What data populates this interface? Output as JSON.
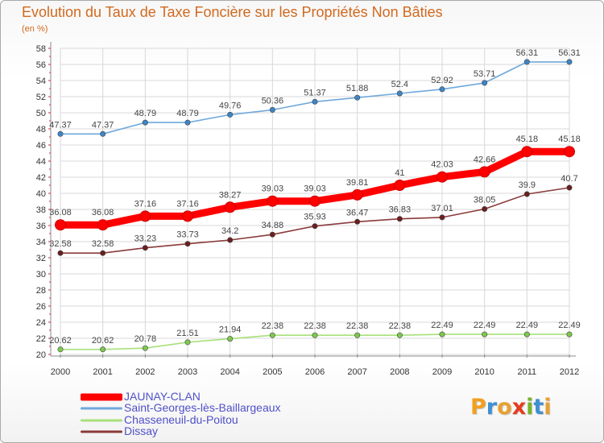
{
  "title": "Evolution du Taux de Taxe Foncière sur les Propriétés Non Bâties",
  "subtitle": "(en %)",
  "logo": {
    "text": "Proxiti",
    "letter_colors": [
      "#f0a020",
      "#3f8fd2",
      "#e8a030",
      "#e63c1e",
      "#78b428",
      "#3f8fd2",
      "#e8a030"
    ]
  },
  "chart_data": {
    "type": "line",
    "title": "Evolution du Taux de Taxe Foncière sur les Propriétés Non Bâties",
    "ylabel": "(en %)",
    "xlabel": "",
    "ylim": [
      20,
      58
    ],
    "yticks": [
      "20",
      "22",
      "24",
      "26",
      "28",
      "30",
      "32",
      "34",
      "36",
      "38",
      "40",
      "42",
      "44",
      "46",
      "48",
      "50",
      "52",
      "54",
      "56",
      "58"
    ],
    "x": [
      "2000",
      "2001",
      "2002",
      "2003",
      "2004",
      "2005",
      "2006",
      "2007",
      "2008",
      "2009",
      "2010",
      "2011",
      "2012"
    ],
    "grid": true,
    "legend_position": "bottom-left",
    "series": [
      {
        "name": "JAUNAY-CLAN",
        "color": "#ff0000",
        "point_color": "#ff0000",
        "width": "thick",
        "values": [
          36.08,
          36.08,
          37.16,
          37.16,
          38.27,
          39.03,
          39.03,
          39.81,
          41,
          42.03,
          42.66,
          45.18,
          45.18
        ],
        "labels": [
          "36.08",
          "36.08",
          "37.16",
          "37.16",
          "38.27",
          "39.03",
          "39.03",
          "39.81",
          "41",
          "42.03",
          "42.66",
          "45.18",
          "45.18"
        ]
      },
      {
        "name": "Saint-Georges-lès-Baillargeaux",
        "color": "#6fa8dc",
        "point_color": "#3d85c6",
        "width": "thin",
        "values": [
          47.37,
          47.37,
          48.79,
          48.79,
          49.76,
          50.36,
          51.37,
          51.88,
          52.4,
          52.92,
          53.71,
          56.31,
          56.31
        ],
        "labels": [
          "47.37",
          "47.37",
          "48.79",
          "48.79",
          "49.76",
          "50.36",
          "51.37",
          "51.88",
          "52.4",
          "52.92",
          "53.71",
          "56.31",
          "56.31"
        ]
      },
      {
        "name": "Chasseneuil-du-Poitou",
        "color": "#a8e07a",
        "point_color": "#7ec850",
        "width": "thin",
        "values": [
          20.62,
          20.62,
          20.78,
          21.51,
          21.94,
          22.38,
          22.38,
          22.38,
          22.38,
          22.49,
          22.49,
          22.49,
          22.49
        ],
        "labels": [
          "20.62",
          "20.62",
          "20.78",
          "21.51",
          "21.94",
          "22.38",
          "22.38",
          "22.38",
          "22.38",
          "22.49",
          "22.49",
          "22.49",
          "22.49"
        ]
      },
      {
        "name": "Dissay",
        "color": "#8b3a3a",
        "point_color": "#6b1f1f",
        "width": "thin",
        "values": [
          32.58,
          32.58,
          33.23,
          33.73,
          34.2,
          34.88,
          35.93,
          36.47,
          36.83,
          37.01,
          38.05,
          39.9,
          40.7
        ],
        "labels": [
          "32.58",
          "32.58",
          "33.23",
          "33.73",
          "34.2",
          "34.88",
          "35.93",
          "36.47",
          "36.83",
          "37.01",
          "38.05",
          "39.9",
          "40.7"
        ]
      }
    ]
  }
}
